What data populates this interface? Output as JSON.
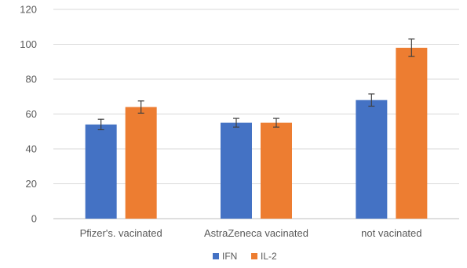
{
  "chart_data": {
    "type": "bar",
    "title": "",
    "xlabel": "",
    "ylabel": "",
    "categories": [
      "Pfizer's. vacinated",
      "AstraZeneca vacinated",
      "not vacinated"
    ],
    "series": [
      {
        "name": "IFN",
        "color": "#4472C4",
        "values": [
          54,
          55,
          68
        ],
        "errors": [
          3,
          2.5,
          3.5
        ]
      },
      {
        "name": "IL-2",
        "color": "#ED7D31",
        "values": [
          64,
          55,
          98
        ],
        "errors": [
          3.5,
          2.5,
          5
        ]
      }
    ],
    "ylim": [
      0,
      120
    ],
    "yticks": [
      0,
      20,
      40,
      60,
      80,
      100,
      120
    ],
    "grid": true,
    "legend": "bottom-center"
  }
}
